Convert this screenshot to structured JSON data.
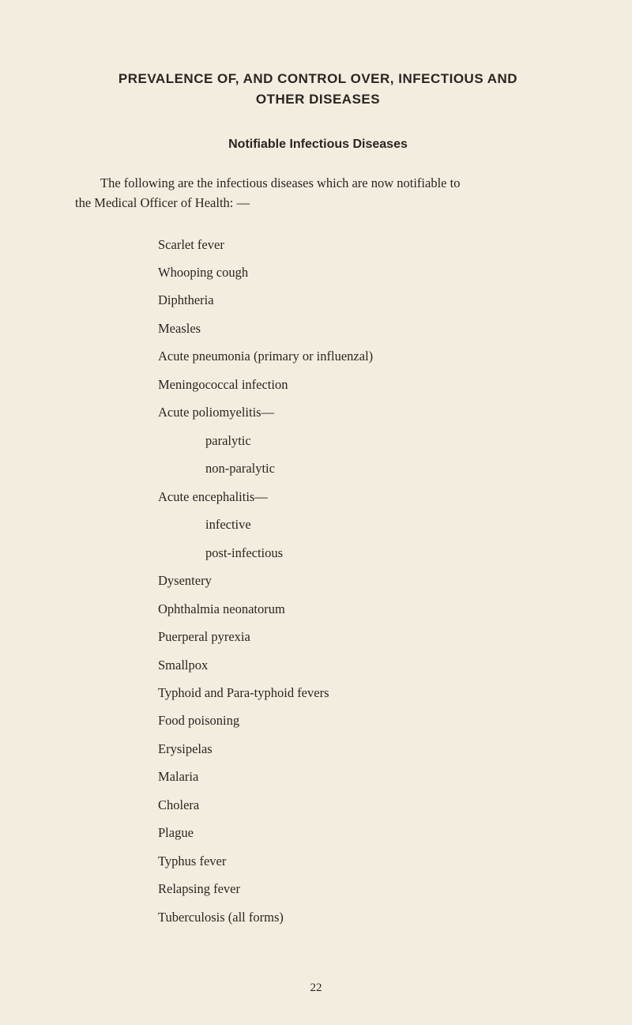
{
  "title_line1": "PREVALENCE OF, AND CONTROL OVER, INFECTIOUS AND",
  "title_line2": "OTHER DISEASES",
  "subtitle": "Notifiable Infectious Diseases",
  "intro_line1": "The following are the infectious diseases which are now notifiable to",
  "intro_line2": "the Medical Officer of Health: —",
  "diseases": {
    "d0": "Scarlet fever",
    "d1": "Whooping cough",
    "d2": "Diphtheria",
    "d3": "Measles",
    "d4": "Acute pneumonia (primary or influenzal)",
    "d5": "Meningococcal infection",
    "d6": "Acute poliomyelitis—",
    "d6a": "paralytic",
    "d6b": "non-paralytic",
    "d7": "Acute encephalitis—",
    "d7a": "infective",
    "d7b": "post-infectious",
    "d8": "Dysentery",
    "d9": "Ophthalmia neonatorum",
    "d10": "Puerperal pyrexia",
    "d11": "Smallpox",
    "d12": "Typhoid and Para-typhoid fevers",
    "d13": "Food poisoning",
    "d14": "Erysipelas",
    "d15": "Malaria",
    "d16": "Cholera",
    "d17": "Plague",
    "d18": "Typhus fever",
    "d19": "Relapsing fever",
    "d20": "Tuberculosis (all forms)"
  },
  "page_number": "22"
}
